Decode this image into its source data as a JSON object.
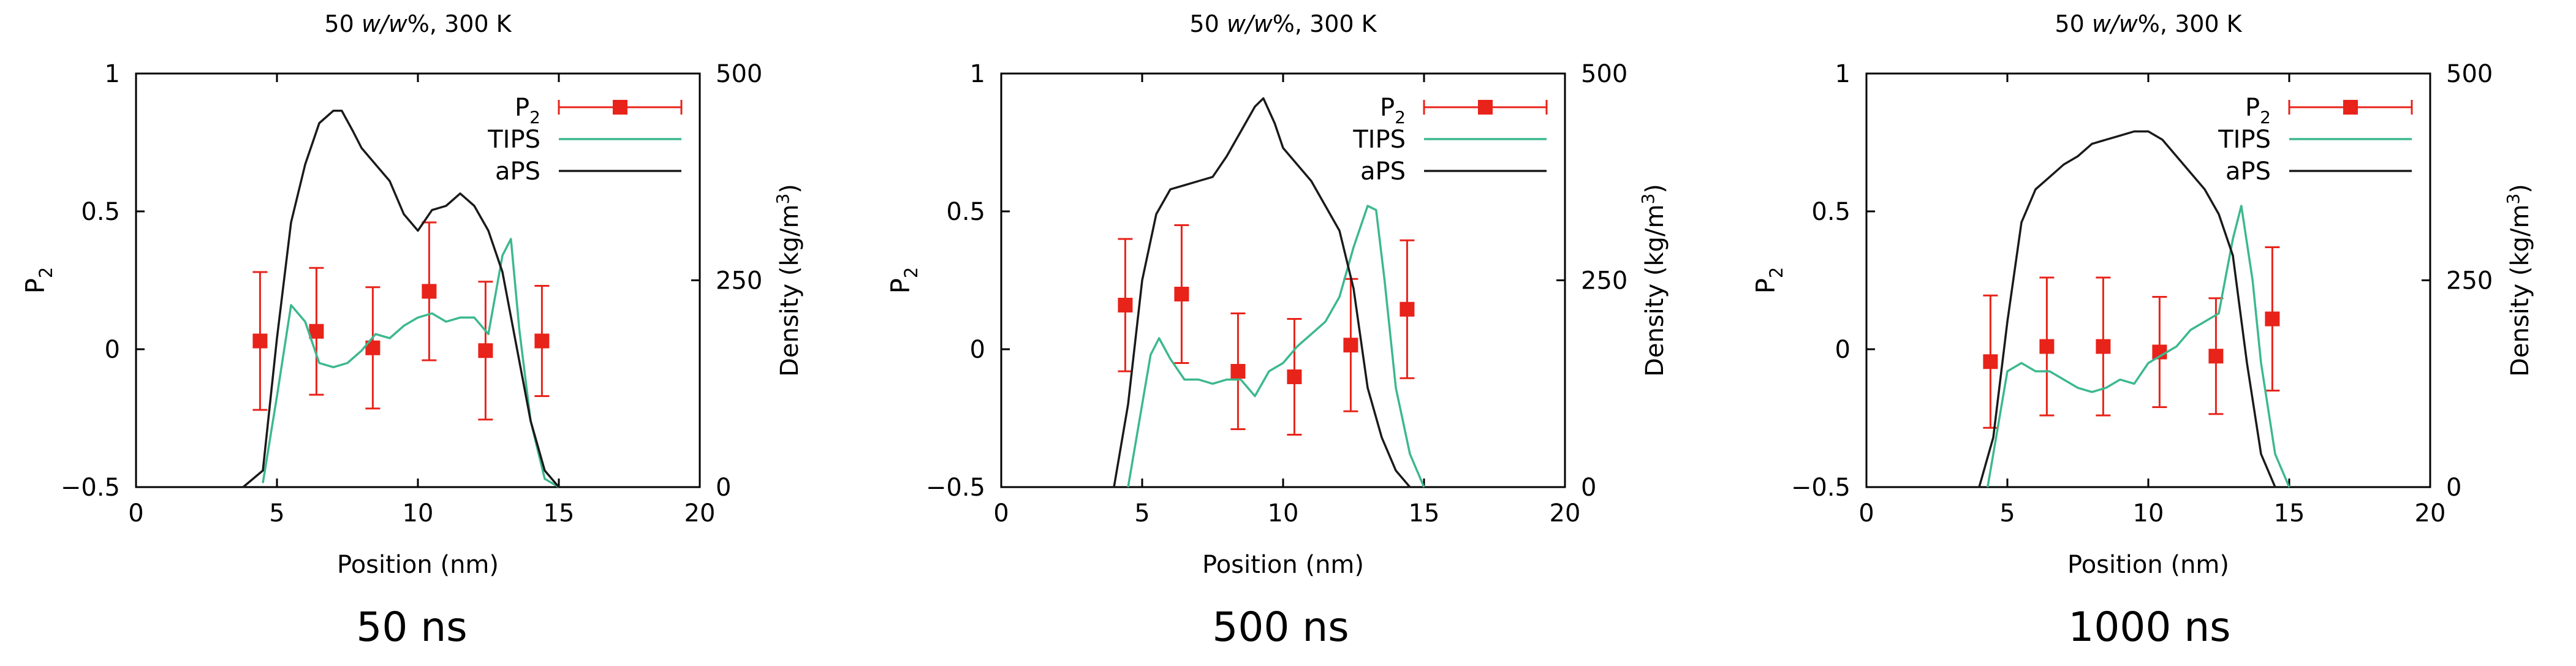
{
  "figure": {
    "captions": [
      "50 ns",
      "500 ns",
      "1000 ns"
    ]
  },
  "colors": {
    "p2": "#e8231a",
    "tips": "#3cb88e",
    "aps": "#1a1a1a",
    "axis": "#000000"
  },
  "chart_data": [
    {
      "type": "line",
      "title": "50 w/w%, 300 K",
      "title_parts": [
        "50 ",
        "w/w",
        "%, 300 K"
      ],
      "xlabel": "Position (nm)",
      "ylabel": "P2",
      "y2label": "Density (kg/m3)",
      "xlim": [
        0,
        20
      ],
      "ylim": [
        -0.5,
        1
      ],
      "y2lim": [
        0,
        500
      ],
      "xticks": [
        "0",
        "5",
        "10",
        "15",
        "20"
      ],
      "yticks": [
        "1",
        "0.5",
        "0",
        "−0.5"
      ],
      "y2ticks": [
        "500",
        "250",
        "0"
      ],
      "legend": [
        "P2",
        "TIPS",
        "aPS"
      ],
      "legend_position": "top-right",
      "series": [
        {
          "name": "P2",
          "axis": "y",
          "style": "points-errorbars",
          "x": [
            4.4,
            6.4,
            8.4,
            10.4,
            12.4,
            14.4
          ],
          "y": [
            0.03,
            0.065,
            0.005,
            0.21,
            -0.005,
            0.03
          ],
          "err": [
            0.25,
            0.23,
            0.22,
            0.25,
            0.25,
            0.2
          ]
        },
        {
          "name": "TIPS",
          "axis": "y2",
          "x": [
            4.5,
            5.0,
            5.5,
            6.0,
            6.5,
            7.0,
            7.5,
            8.0,
            8.5,
            9.0,
            9.5,
            10.0,
            10.5,
            11.0,
            11.5,
            12.0,
            12.5,
            13.0,
            13.3,
            13.6,
            14.0,
            14.5,
            15.0
          ],
          "y": [
            5,
            110,
            220,
            200,
            150,
            145,
            150,
            165,
            185,
            180,
            195,
            205,
            210,
            200,
            205,
            205,
            185,
            280,
            300,
            190,
            80,
            10,
            0
          ]
        },
        {
          "name": "aPS",
          "axis": "y2",
          "x": [
            3.8,
            4.5,
            5.0,
            5.5,
            6.0,
            6.5,
            7.0,
            7.3,
            7.7,
            8.0,
            8.5,
            9.0,
            9.5,
            10.0,
            10.5,
            11.0,
            11.5,
            12.0,
            12.5,
            13.0,
            13.5,
            14.0,
            14.5,
            15.0
          ],
          "y": [
            0,
            20,
            180,
            320,
            390,
            440,
            455,
            455,
            430,
            410,
            390,
            370,
            330,
            310,
            335,
            340,
            355,
            340,
            310,
            260,
            170,
            80,
            20,
            0
          ]
        }
      ]
    },
    {
      "type": "line",
      "title": "50 w/w%, 300 K",
      "title_parts": [
        "50 ",
        "w/w",
        "%, 300 K"
      ],
      "xlabel": "Position (nm)",
      "ylabel": "P2",
      "y2label": "Density (kg/m3)",
      "xlim": [
        0,
        20
      ],
      "ylim": [
        -0.5,
        1
      ],
      "y2lim": [
        0,
        500
      ],
      "xticks": [
        "0",
        "5",
        "10",
        "15",
        "20"
      ],
      "yticks": [
        "1",
        "0.5",
        "0",
        "−0.5"
      ],
      "y2ticks": [
        "500",
        "250",
        "0"
      ],
      "legend": [
        "P2",
        "TIPS",
        "aPS"
      ],
      "legend_position": "top-right",
      "series": [
        {
          "name": "P2",
          "axis": "y",
          "style": "points-errorbars",
          "x": [
            4.4,
            6.4,
            8.4,
            10.4,
            12.4,
            14.4
          ],
          "y": [
            0.16,
            0.2,
            -0.08,
            -0.1,
            0.015,
            0.145
          ],
          "err": [
            0.24,
            0.25,
            0.21,
            0.21,
            0.24,
            0.25
          ]
        },
        {
          "name": "TIPS",
          "axis": "y2",
          "x": [
            4.5,
            5.0,
            5.3,
            5.6,
            6.0,
            6.5,
            7.0,
            7.5,
            8.0,
            8.5,
            9.0,
            9.5,
            10.0,
            10.5,
            11.0,
            11.5,
            12.0,
            12.5,
            13.0,
            13.3,
            13.6,
            14.0,
            14.5,
            15.0
          ],
          "y": [
            0,
            100,
            160,
            180,
            155,
            130,
            130,
            125,
            130,
            130,
            110,
            140,
            150,
            170,
            185,
            200,
            230,
            290,
            340,
            335,
            250,
            120,
            40,
            0
          ]
        },
        {
          "name": "aPS",
          "axis": "y2",
          "x": [
            4.0,
            4.5,
            5.0,
            5.5,
            6.0,
            6.5,
            7.0,
            7.5,
            8.0,
            8.5,
            9.0,
            9.3,
            9.7,
            10.0,
            10.5,
            11.0,
            11.5,
            12.0,
            12.5,
            13.0,
            13.5,
            14.0,
            14.5
          ],
          "y": [
            0,
            100,
            250,
            330,
            360,
            365,
            370,
            375,
            400,
            430,
            460,
            470,
            440,
            410,
            390,
            370,
            340,
            310,
            240,
            120,
            60,
            20,
            0
          ]
        }
      ]
    },
    {
      "type": "line",
      "title": "50 w/w%, 300 K",
      "title_parts": [
        "50 ",
        "w/w",
        "%, 300 K"
      ],
      "xlabel": "Position (nm)",
      "ylabel": "P2",
      "y2label": "Density (kg/m3)",
      "xlim": [
        0,
        20
      ],
      "ylim": [
        -0.5,
        1
      ],
      "y2lim": [
        0,
        500
      ],
      "xticks": [
        "0",
        "5",
        "10",
        "15",
        "20"
      ],
      "yticks": [
        "1",
        "0.5",
        "0",
        "−0.5"
      ],
      "y2ticks": [
        "500",
        "250",
        "0"
      ],
      "legend": [
        "P2",
        "TIPS",
        "aPS"
      ],
      "legend_position": "top-right",
      "series": [
        {
          "name": "P2",
          "axis": "y",
          "style": "points-errorbars",
          "x": [
            4.4,
            6.4,
            8.4,
            10.4,
            12.4,
            14.4
          ],
          "y": [
            -0.045,
            0.01,
            0.01,
            -0.01,
            -0.025,
            0.11
          ],
          "err": [
            0.24,
            0.25,
            0.25,
            0.2,
            0.21,
            0.26
          ]
        },
        {
          "name": "TIPS",
          "axis": "y2",
          "x": [
            4.3,
            4.7,
            5.0,
            5.5,
            6.0,
            6.5,
            7.0,
            7.5,
            8.0,
            8.5,
            9.0,
            9.5,
            10.0,
            10.5,
            11.0,
            11.5,
            12.0,
            12.5,
            13.0,
            13.3,
            13.7,
            14.0,
            14.5,
            15.0
          ],
          "y": [
            0,
            80,
            140,
            150,
            140,
            140,
            130,
            120,
            115,
            120,
            130,
            125,
            150,
            160,
            170,
            190,
            200,
            210,
            300,
            340,
            250,
            150,
            40,
            0
          ]
        },
        {
          "name": "aPS",
          "axis": "y2",
          "x": [
            4.0,
            4.5,
            5.0,
            5.5,
            6.0,
            6.5,
            7.0,
            7.5,
            8.0,
            8.5,
            9.0,
            9.5,
            10.0,
            10.5,
            11.0,
            11.5,
            12.0,
            12.5,
            13.0,
            13.5,
            14.0,
            14.5
          ],
          "y": [
            0,
            60,
            200,
            320,
            360,
            375,
            390,
            400,
            415,
            420,
            425,
            430,
            430,
            420,
            400,
            380,
            360,
            330,
            280,
            150,
            40,
            0
          ]
        }
      ]
    }
  ]
}
